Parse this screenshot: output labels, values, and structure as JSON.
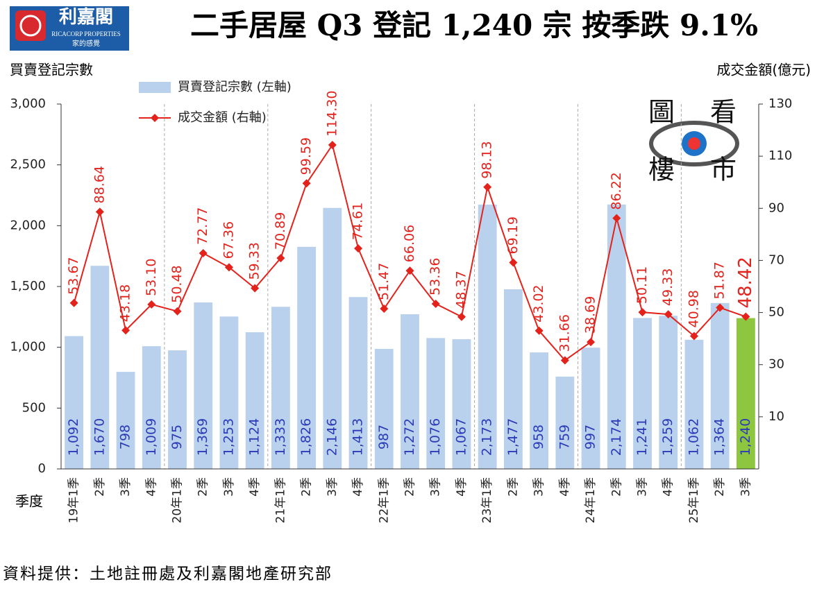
{
  "logo": {
    "name": "利嘉閣",
    "english": "RICACORP PROPERTIES",
    "slogan": "家的感覺"
  },
  "watermark": [
    "圖",
    "看",
    "樓",
    "市"
  ],
  "source": "資料提供：土地註冊處及利嘉閣地產研究部",
  "chart_data": {
    "type": "combo",
    "title": "二手居屋 Q3 登記 1,240 宗  按季跌 9.1%",
    "y_label": "買賣登記宗數",
    "y2_label": "成交金額(億元)",
    "x_label": "季度",
    "categories": [
      "19年1季",
      "2季",
      "3季",
      "4季",
      "20年1季",
      "2季",
      "3季",
      "4季",
      "21年1季",
      "2季",
      "3季",
      "4季",
      "22年1季",
      "2季",
      "3季",
      "4季",
      "23年1季",
      "2季",
      "3季",
      "4季",
      "24年1季",
      "2季",
      "3季",
      "4季",
      "25年1季",
      "2季",
      "3季"
    ],
    "ylim": [
      0,
      3000
    ],
    "yticks": [
      0,
      500,
      {
        "value": 1000,
        "label": "1,000"
      },
      {
        "value": 1500,
        "label": "1,500"
      },
      {
        "value": 2000,
        "label": "2,000"
      },
      {
        "value": 2500,
        "label": "2,500"
      },
      {
        "value": 3000,
        "label": "3,000"
      }
    ],
    "y2lim": [
      -10,
      130
    ],
    "y2ticks": [
      10,
      30,
      50,
      70,
      90,
      110,
      130
    ],
    "legend": "upper left",
    "series": [
      {
        "name": "買賣登記宗數 (左軸)",
        "type": "bar",
        "color": "#b9d1ec",
        "colors": [
          "#b9d1ec",
          "#b9d1ec",
          "#b9d1ec",
          "#b9d1ec",
          "#b9d1ec",
          "#b9d1ec",
          "#b9d1ec",
          "#b9d1ec",
          "#b9d1ec",
          "#b9d1ec",
          "#b9d1ec",
          "#b9d1ec",
          "#b9d1ec",
          "#b9d1ec",
          "#b9d1ec",
          "#b9d1ec",
          "#b9d1ec",
          "#b9d1ec",
          "#b9d1ec",
          "#b9d1ec",
          "#b9d1ec",
          "#b9d1ec",
          "#b9d1ec",
          "#b9d1ec",
          "#b9d1ec",
          "#b9d1ec",
          "#8dc63f"
        ],
        "values": [
          1092,
          1670,
          798,
          1009,
          975,
          1369,
          1253,
          1124,
          1333,
          1826,
          2146,
          1413,
          987,
          1272,
          1076,
          1067,
          2173,
          1477,
          958,
          759,
          997,
          2174,
          1241,
          1259,
          1062,
          1364,
          1240
        ],
        "value_labels": [
          "1,092",
          "1,670",
          "798",
          "1,009",
          "975",
          "1,369",
          "1,253",
          "1,124",
          "1,333",
          "1,826",
          "2,146",
          "1,413",
          "987",
          "1,272",
          "1,076",
          "1,067",
          "2,173",
          "1,477",
          "958",
          "759",
          "997",
          "2,174",
          "1,241",
          "1,259",
          "1,062",
          "1,364",
          "1,240"
        ]
      },
      {
        "name": "成交金額 (右軸)",
        "type": "line",
        "axis": "y2",
        "color": "#e3221b",
        "values": [
          53.67,
          88.64,
          43.18,
          53.1,
          50.48,
          72.77,
          67.36,
          59.33,
          70.89,
          99.59,
          114.3,
          74.61,
          51.47,
          66.06,
          53.36,
          48.37,
          98.13,
          69.19,
          43.02,
          31.66,
          38.69,
          86.22,
          50.11,
          49.33,
          40.98,
          51.87,
          48.42
        ],
        "value_labels": [
          "53.67",
          "88.64",
          "43.18",
          "53.10",
          "50.48",
          "72.77",
          "67.36",
          "59.33",
          "70.89",
          "99.59",
          "114.30",
          "74.61",
          "51.47",
          "66.06",
          "53.36",
          "48.37",
          "98.13",
          "69.19",
          "43.02",
          "31.66",
          "38.69",
          "86.22",
          "50.11",
          "49.33",
          "40.98",
          "51.87",
          "48.42"
        ]
      }
    ]
  }
}
